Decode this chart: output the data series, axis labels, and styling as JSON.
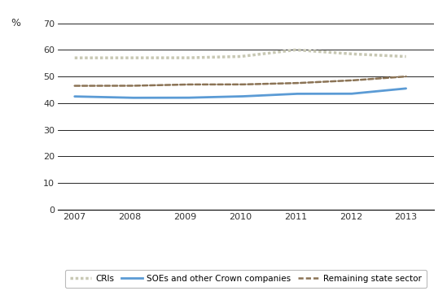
{
  "years": [
    2007,
    2008,
    2009,
    2010,
    2011,
    2012,
    2013
  ],
  "CRIs": [
    57.0,
    57.0,
    57.0,
    57.5,
    60.0,
    58.5,
    57.5
  ],
  "SOEs": [
    42.5,
    42.0,
    42.0,
    42.5,
    43.5,
    43.5,
    45.5
  ],
  "RSS": [
    46.5,
    46.5,
    47.0,
    47.0,
    47.5,
    48.5,
    50.0
  ],
  "cri_color": "#c8c8b4",
  "soe_color": "#5b9bd5",
  "rss_color": "#8b7355",
  "yticks": [
    0,
    10,
    20,
    30,
    40,
    50,
    60,
    70
  ],
  "ymax": 70,
  "ymin": 0,
  "legend_labels": [
    "CRIs",
    "SOEs and other Crown companies",
    "Remaining state sector"
  ],
  "background_color": "#ffffff"
}
